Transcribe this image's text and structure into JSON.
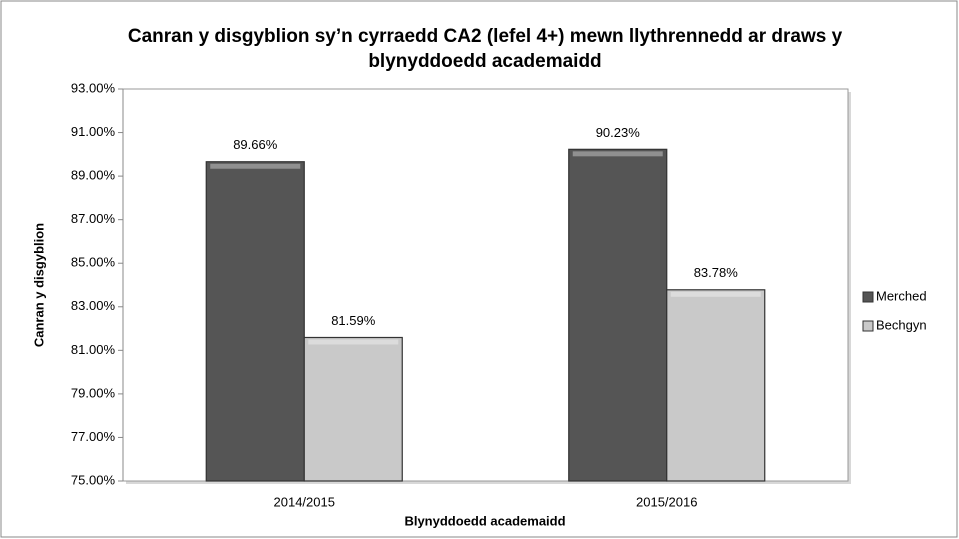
{
  "chart_data": {
    "type": "bar",
    "title": [
      "Canran y disgyblion sy’n cyrraedd CA2 (lefel 4+) mewn llythrennedd ar draws y",
      "blynyddoedd academaidd"
    ],
    "x_label": "Blynyddoedd academaidd",
    "y_label": "Canran y disgyblion",
    "categories": [
      "2014/2015",
      "2015/2016"
    ],
    "series": [
      {
        "name": "Merched",
        "color": "#555555",
        "values": [
          89.66,
          90.23
        ],
        "value_labels": [
          "89.66%",
          "90.23%"
        ]
      },
      {
        "name": "Bechgyn",
        "color": "#c9c9c9",
        "values": [
          81.59,
          83.78
        ],
        "value_labels": [
          "81.59%",
          "83.78%"
        ]
      }
    ],
    "ylim": [
      75,
      93
    ],
    "yticks": [
      {
        "value": 75,
        "label": "75.00%"
      },
      {
        "value": 77,
        "label": "77.00%"
      },
      {
        "value": 79,
        "label": "79.00%"
      },
      {
        "value": 81,
        "label": "81.00%"
      },
      {
        "value": 83,
        "label": "83.00%"
      },
      {
        "value": 85,
        "label": "85.00%"
      },
      {
        "value": 87,
        "label": "87.00%"
      },
      {
        "value": 89,
        "label": "89.00%"
      },
      {
        "value": 91,
        "label": "91.00%"
      },
      {
        "value": 93,
        "label": "93.00%"
      }
    ],
    "grid": false,
    "legend": "right"
  }
}
